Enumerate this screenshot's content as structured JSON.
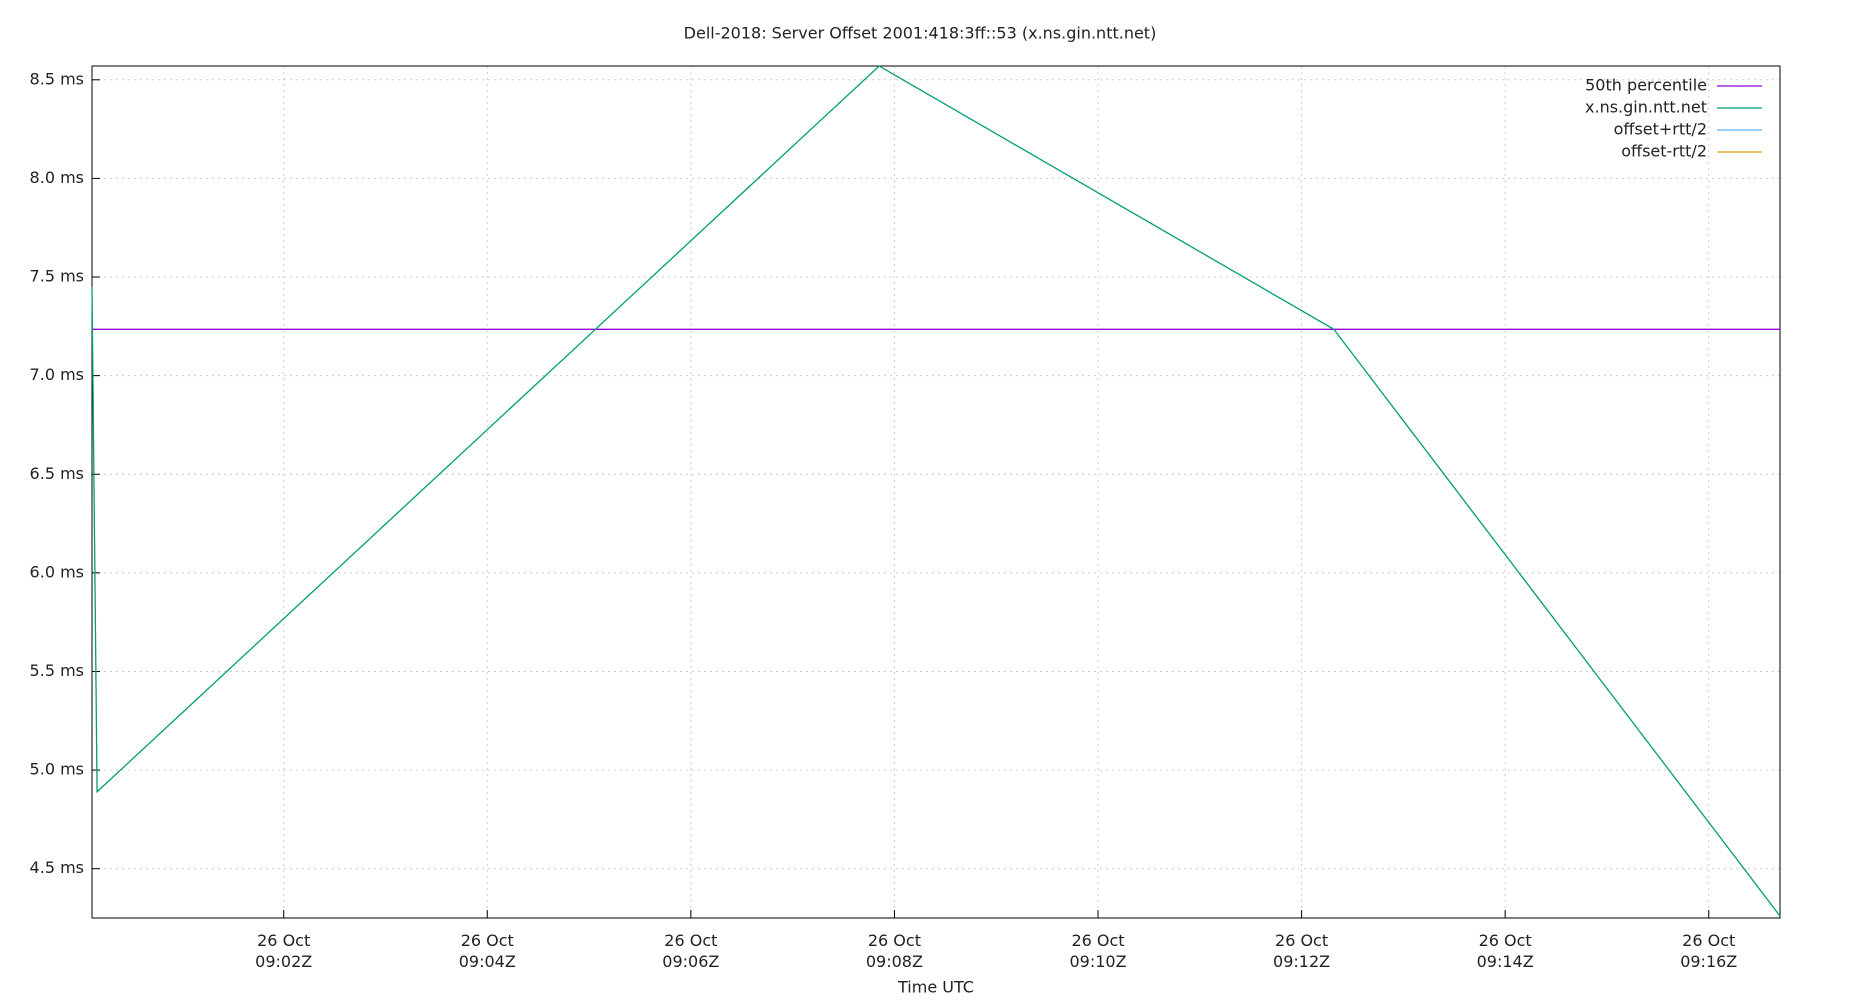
{
  "chart_data": {
    "type": "line",
    "title": "Dell-2018: Server Offset 2001:418:3ff::53 (x.ns.gin.ntt.net)",
    "x_label": "Time UTC",
    "x": [
      "09:00:07Z",
      "09:00:10Z",
      "09:07:51Z",
      "09:12:19Z",
      "09:16:42Z"
    ],
    "series": [
      {
        "name": "50th percentile",
        "color": "#9400d3",
        "values": [
          7.235,
          7.235,
          7.235,
          7.235,
          7.235
        ]
      },
      {
        "name": "x.ns.gin.ntt.net",
        "color": "#009e73",
        "values": [
          7.45,
          4.89,
          8.57,
          7.235,
          4.26
        ]
      },
      {
        "name": "offset+rtt/2",
        "color": "#56b4e9",
        "values": [
          null,
          null,
          null,
          null,
          null
        ]
      },
      {
        "name": "offset-rtt/2",
        "color": "#e69f00",
        "values": [
          null,
          null,
          null,
          null,
          null
        ]
      }
    ],
    "xlim": [
      "09:00:07Z",
      "09:16:42Z"
    ],
    "xticks": [
      {
        "value": "09:02Z",
        "label": "26 Oct\n09:02Z"
      },
      {
        "value": "09:04Z",
        "label": "26 Oct\n09:04Z"
      },
      {
        "value": "09:06Z",
        "label": "26 Oct\n09:06Z"
      },
      {
        "value": "09:08Z",
        "label": "26 Oct\n09:08Z"
      },
      {
        "value": "09:10Z",
        "label": "26 Oct\n09:10Z"
      },
      {
        "value": "09:12Z",
        "label": "26 Oct\n09:12Z"
      },
      {
        "value": "09:14Z",
        "label": "26 Oct\n09:14Z"
      },
      {
        "value": "09:16Z",
        "label": "26 Oct\n09:16Z"
      }
    ],
    "ylim": [
      4.25,
      8.57
    ],
    "yticks": [
      {
        "value": 4.5,
        "label": "4.5 ms"
      },
      {
        "value": 5.0,
        "label": "5.0 ms"
      },
      {
        "value": 5.5,
        "label": "5.5 ms"
      },
      {
        "value": 6.0,
        "label": "6.0 ms"
      },
      {
        "value": 6.5,
        "label": "6.5 ms"
      },
      {
        "value": 7.0,
        "label": "7.0 ms"
      },
      {
        "value": 7.5,
        "label": "7.5 ms"
      },
      {
        "value": 8.0,
        "label": "8.0 ms"
      },
      {
        "value": 8.5,
        "label": "8.5 ms"
      }
    ],
    "grid": true,
    "legend": "top-right"
  }
}
